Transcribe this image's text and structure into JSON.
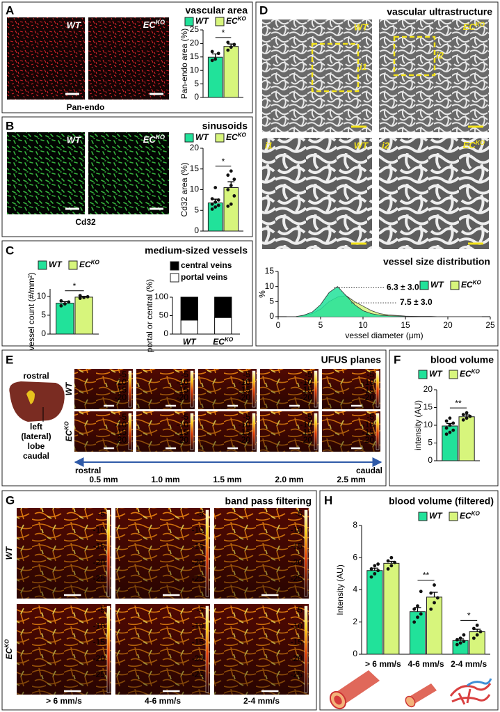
{
  "panels": {
    "A": {
      "letter": "A",
      "images": [
        "WT",
        {
          "text": "EC",
          "sup": "KO"
        }
      ],
      "stain": "Pan-endo"
    },
    "B": {
      "letter": "B",
      "images": [
        "WT",
        {
          "text": "EC",
          "sup": "KO"
        }
      ],
      "stain": "Cd32"
    },
    "C": {
      "letter": "C",
      "title": "medium-sized vessels"
    },
    "D": {
      "letter": "D",
      "title": "vascular ultrastructure",
      "images": [
        "WT",
        {
          "text": "EC",
          "sup": "KO"
        }
      ],
      "insets": [
        "i1",
        "i2"
      ]
    },
    "E": {
      "letter": "E",
      "title": "UFUS planes",
      "liver": [
        "rostral",
        "left",
        "(lateral)",
        "lobe",
        "caudal"
      ],
      "rows": [
        "WT",
        {
          "text": "EC",
          "sup": "KO"
        }
      ],
      "colorbar_ticks": [
        -5,
        -10,
        -15,
        -20
      ],
      "axis_ends": [
        "rostral",
        "caudal"
      ],
      "planes": [
        "0.5 mm",
        "1.0 mm",
        "1.5 mm",
        "2.0 mm",
        "2.5 mm"
      ]
    },
    "F": {
      "letter": "F"
    },
    "G": {
      "letter": "G",
      "title": "band pass filtering",
      "rows": [
        "WT",
        {
          "text": "EC",
          "sup": "KO"
        }
      ],
      "colorbar_ticks": [
        -5,
        -10,
        -15,
        -20,
        -25
      ],
      "columns": [
        "> 6 mm/s",
        "4-6 mm/s",
        "2-4 mm/s"
      ]
    },
    "H": {
      "letter": "H"
    }
  },
  "chart_data": [
    {
      "type": "bar",
      "title": "vascular area",
      "ylabel": "Pan-endo area (%)",
      "ylim": [
        0,
        25
      ],
      "yticks": [
        0,
        5,
        10,
        15,
        20,
        25
      ],
      "categories": [
        null
      ],
      "series": [
        {
          "name": "WT",
          "color": "#21e29a",
          "values": [
            14.9
          ],
          "errors": [
            1.2
          ],
          "points": [
            [
              13.7,
              14.2,
              16.3,
              17.0
            ]
          ]
        },
        {
          "name": "EC",
          "name_sup": "KO",
          "color": "#d7f57c",
          "values": [
            18.9
          ],
          "errors": [
            0.9
          ],
          "points": [
            [
              17.5,
              18.6,
              19.6,
              20.4
            ]
          ]
        }
      ],
      "significance": [
        "*"
      ]
    },
    {
      "type": "bar",
      "title": "sinusoids",
      "ylabel": "Cd32 area (%)",
      "ylim": [
        0,
        20
      ],
      "yticks": [
        0,
        5,
        10,
        15,
        20
      ],
      "categories": [
        null
      ],
      "series": [
        {
          "name": "WT",
          "color": "#21e29a",
          "values": [
            6.8
          ],
          "errors": [
            0.9
          ],
          "points": [
            [
              5.3,
              5.8,
              6.2,
              6.5,
              7.0,
              7.5,
              7.8,
              10.5
            ]
          ]
        },
        {
          "name": "EC",
          "name_sup": "KO",
          "color": "#d7f57c",
          "values": [
            10.5
          ],
          "errors": [
            1.4
          ],
          "points": [
            [
              6.0,
              6.5,
              8.5,
              10.0,
              11.0,
              12.5,
              13.5,
              14.5
            ]
          ]
        }
      ],
      "significance": [
        "*"
      ]
    },
    {
      "type": "bar",
      "ylabel": "vessel count (#/mm²)",
      "ylim": [
        0,
        12
      ],
      "yticks": [
        0,
        5,
        10
      ],
      "categories": [
        null
      ],
      "series": [
        {
          "name": "WT",
          "color": "#21e29a",
          "values": [
            8.2
          ],
          "errors": [
            0.4
          ],
          "points": [
            [
              7.5,
              8.0,
              8.5,
              8.8
            ]
          ]
        },
        {
          "name": "EC",
          "name_sup": "KO",
          "color": "#d7f57c",
          "values": [
            9.8
          ],
          "errors": [
            0.2
          ],
          "points": [
            [
              9.5,
              9.7,
              9.9,
              10.2
            ]
          ]
        }
      ],
      "significance": [
        "*"
      ]
    },
    {
      "type": "stacked_bar",
      "ylabel": "portal or central (%)",
      "ylim": [
        0,
        100
      ],
      "yticks": [
        0,
        50,
        100
      ],
      "categories": [
        "WT",
        "EC"
      ],
      "category_sups": [
        null,
        "KO"
      ],
      "series": [
        {
          "name": "portal veins",
          "color": "#ffffff",
          "values": [
            38,
            45
          ],
          "errors": [
            4,
            3
          ]
        },
        {
          "name": "central veins",
          "color": "#000000",
          "values": [
            62,
            55
          ]
        }
      ]
    },
    {
      "type": "area",
      "title": "vessel size distribution",
      "ylabel": "%",
      "xlabel": "vessel diameter (μm)",
      "xlim": [
        0,
        25
      ],
      "xticks": [
        0,
        5,
        10,
        15,
        20,
        25
      ],
      "ylim": [
        0,
        15
      ],
      "yticks": [
        0,
        5,
        10,
        15
      ],
      "x": [
        1,
        2,
        3,
        4,
        5,
        6,
        7,
        8,
        9,
        10,
        11,
        12,
        13,
        14,
        15,
        16,
        17,
        18,
        19,
        20,
        21,
        22,
        23,
        24
      ],
      "series": [
        {
          "name": "WT",
          "color": "#21e29a",
          "values": [
            0,
            0,
            0.5,
            1.5,
            4,
            8,
            10,
            7,
            4,
            2,
            1,
            0.5,
            0.3,
            0.2,
            0.1,
            0.1,
            0,
            0,
            0,
            0,
            0,
            0,
            0,
            0
          ]
        },
        {
          "name": "EC",
          "name_sup": "KO",
          "color": "#d7f57c",
          "values": [
            0,
            0,
            0.3,
            1,
            2.5,
            5,
            6.5,
            7,
            5,
            3.5,
            2,
            1,
            0.6,
            0.4,
            0.2,
            0.1,
            0.1,
            0.1,
            0,
            0,
            0,
            0,
            0,
            0
          ]
        }
      ],
      "annotations": [
        {
          "text": "6.3 ± 3.0",
          "color": "#2ee6a0"
        },
        {
          "text": "7.5 ± 3.0",
          "color": "#d3ec6e"
        }
      ]
    },
    {
      "type": "bar",
      "title": "blood volume",
      "ylabel": "intensity (AU)",
      "ylim": [
        0,
        20
      ],
      "yticks": [
        0,
        5,
        10,
        15,
        20
      ],
      "categories": [
        null
      ],
      "series": [
        {
          "name": "WT",
          "color": "#21e29a",
          "values": [
            9.8
          ],
          "errors": [
            0.7
          ],
          "points": [
            [
              7.5,
              8.0,
              8.6,
              9.2,
              10.0,
              10.6,
              11.2,
              12.0
            ]
          ]
        },
        {
          "name": "EC",
          "name_sup": "KO",
          "color": "#d7f57c",
          "values": [
            12.4
          ],
          "errors": [
            0.5
          ],
          "points": [
            [
              11.5,
              12.0,
              12.5,
              13.0,
              13.5
            ]
          ]
        }
      ],
      "significance": [
        "**"
      ]
    },
    {
      "type": "bar",
      "title": "blood volume (filtered)",
      "ylabel": "Intensity (AU)",
      "ylim": [
        0,
        8
      ],
      "yticks": [
        0,
        2,
        4,
        6,
        8
      ],
      "categories": [
        "> 6 mm/s",
        "4-6 mm/s",
        "2-4 mm/s"
      ],
      "series": [
        {
          "name": "WT",
          "color": "#21e29a",
          "values": [
            5.2,
            2.65,
            0.85
          ],
          "errors": [
            0.15,
            0.25,
            0.1
          ],
          "points": [
            [
              4.8,
              5.0,
              5.2,
              5.3,
              5.5,
              5.6
            ],
            [
              2.0,
              2.3,
              2.5,
              2.8,
              3.0,
              3.9
            ],
            [
              0.6,
              0.7,
              0.8,
              0.9,
              1.0,
              1.2
            ]
          ]
        },
        {
          "name": "EC",
          "name_sup": "KO",
          "color": "#d7f57c",
          "values": [
            5.65,
            3.55,
            1.4
          ],
          "errors": [
            0.12,
            0.3,
            0.15
          ],
          "points": [
            [
              5.3,
              5.5,
              5.7,
              5.8,
              6.0
            ],
            [
              2.8,
              3.2,
              3.5,
              3.8,
              4.3
            ],
            [
              1.0,
              1.2,
              1.4,
              1.6,
              1.8
            ]
          ]
        }
      ],
      "significance": [
        null,
        "**",
        "*"
      ]
    }
  ]
}
